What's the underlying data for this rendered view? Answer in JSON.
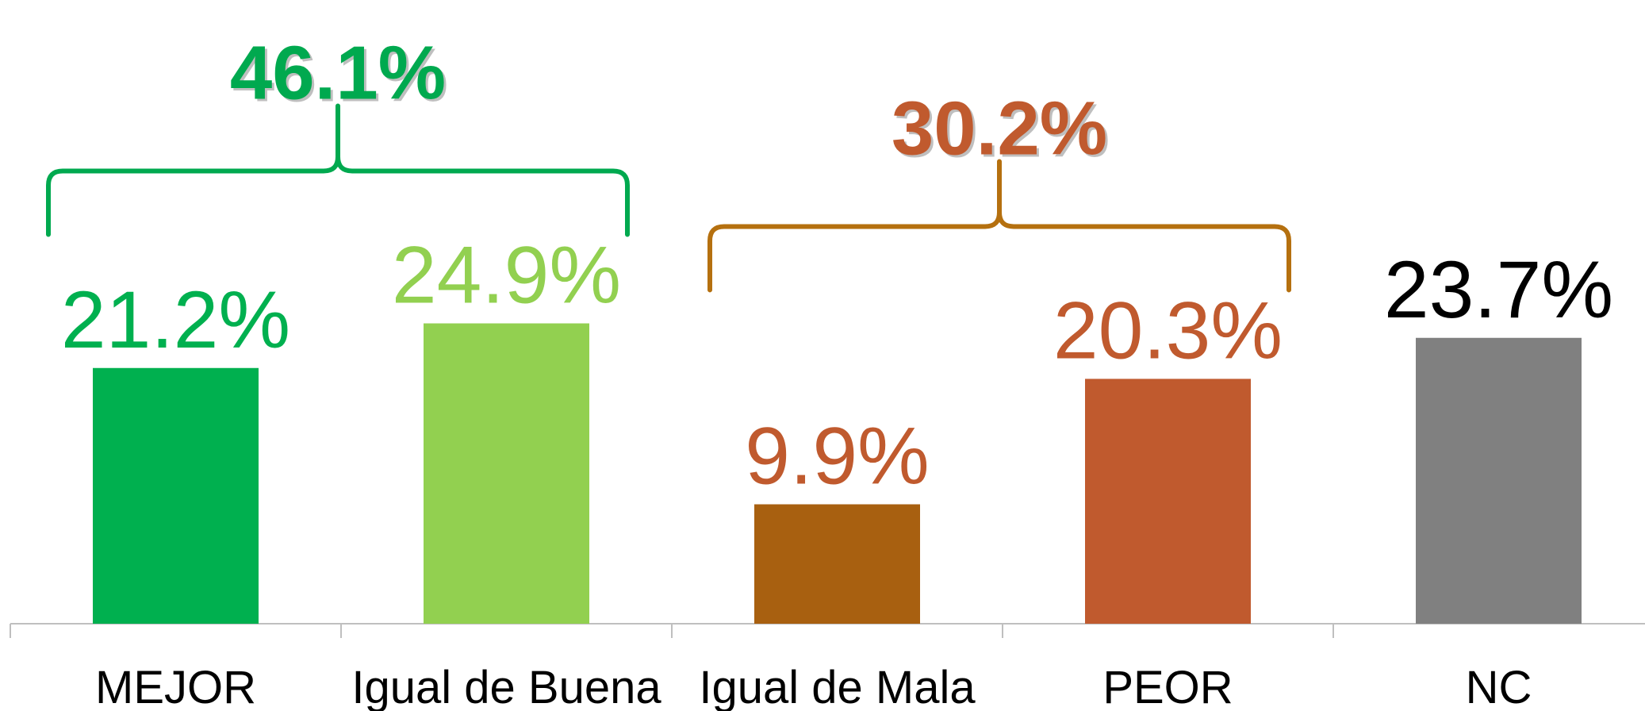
{
  "chart_data": {
    "type": "bar",
    "categories": [
      "MEJOR",
      "Igual de Buena",
      "Igual de Mala",
      "PEOR",
      "NC"
    ],
    "values": [
      21.2,
      24.9,
      9.9,
      20.3,
      23.7
    ],
    "value_labels": [
      "21.2%",
      "24.9%",
      "9.9%",
      "20.3%",
      "23.7%"
    ],
    "colors": [
      "#00b04f",
      "#92d050",
      "#a86010",
      "#c05a2e",
      "#808080"
    ],
    "label_colors": [
      "#00b04f",
      "#92d050",
      "#c05a2e",
      "#c05a2e",
      "#000000"
    ],
    "ylim": [
      0,
      50
    ],
    "annotations": [
      {
        "label": "46.1%",
        "value": 46.1,
        "span": [
          0,
          1
        ],
        "color": "#00a94f"
      },
      {
        "label": "30.2%",
        "value": 30.2,
        "span": [
          2,
          3
        ],
        "color": "#c05a2e",
        "bracket_color": "#b5700f"
      }
    ]
  }
}
